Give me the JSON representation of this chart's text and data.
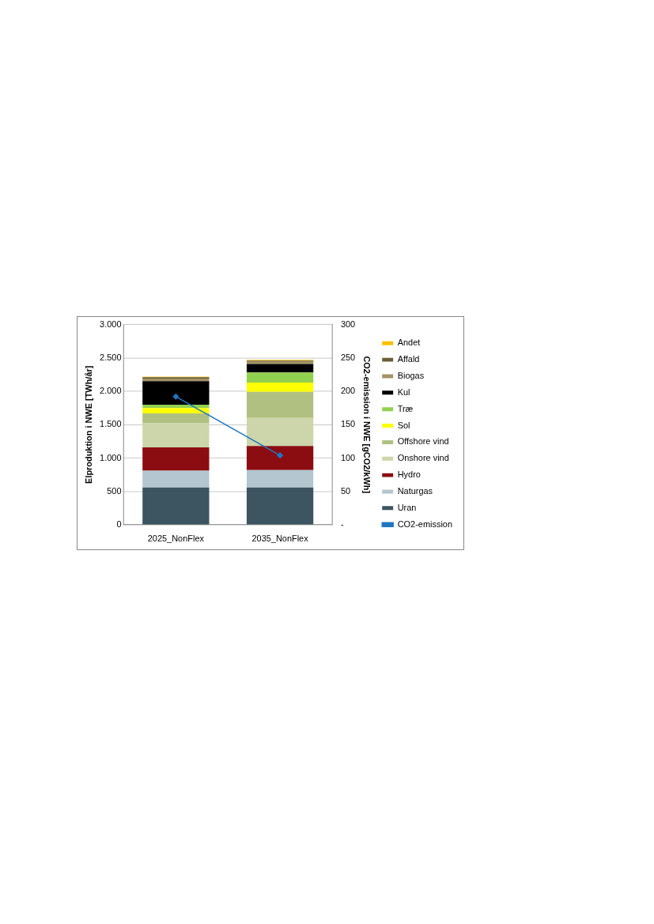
{
  "chart_data": {
    "type": "bar",
    "stacked": true,
    "ylabel": "Elproduktion i NWE [TWh/år]",
    "y2label": "CO2-emission i NWE [gCO2/kWh]",
    "categories": [
      "2025_NonFlex",
      "2035_NonFlex"
    ],
    "series": [
      {
        "name": "Uran",
        "color": "#3d5461",
        "values": [
          560,
          560
        ]
      },
      {
        "name": "Naturgas",
        "color": "#b4c6d0",
        "values": [
          250,
          260
        ]
      },
      {
        "name": "Hydro",
        "color": "#8b0d12",
        "values": [
          350,
          360
        ]
      },
      {
        "name": "Onshore vind",
        "color": "#ccd6aa",
        "values": [
          360,
          420
        ]
      },
      {
        "name": "Offshore vind",
        "color": "#b0c080",
        "values": [
          150,
          390
        ]
      },
      {
        "name": "Sol",
        "color": "#ffff00",
        "values": [
          80,
          140
        ]
      },
      {
        "name": "Træ",
        "color": "#92d050",
        "values": [
          50,
          150
        ]
      },
      {
        "name": "Kul",
        "color": "#000000",
        "values": [
          350,
          130
        ]
      },
      {
        "name": "Biogas",
        "color": "#a39364",
        "values": [
          40,
          30
        ]
      },
      {
        "name": "Affald",
        "color": "#6b5e3a",
        "values": [
          20,
          20
        ]
      },
      {
        "name": "Andet",
        "color": "#ffc000",
        "values": [
          10,
          10
        ]
      },
      {
        "name": "CO2-emission",
        "type": "line",
        "axis": "y2",
        "color": "#1f77c4",
        "marker": "diamond",
        "values": [
          192,
          104
        ]
      }
    ],
    "ylim": [
      0,
      3000
    ],
    "yticks": [
      {
        "value": 0,
        "label": "0"
      },
      {
        "value": 500,
        "label": "500"
      },
      {
        "value": 1000,
        "label": "1.000"
      },
      {
        "value": 1500,
        "label": "1.500"
      },
      {
        "value": 2000,
        "label": "2.000"
      },
      {
        "value": 2500,
        "label": "2.500"
      },
      {
        "value": 3000,
        "label": "3.000"
      }
    ],
    "y2lim": [
      0,
      300
    ],
    "y2ticks": [
      {
        "value": 0,
        "label": "-"
      },
      50,
      100,
      150,
      200,
      250,
      300
    ],
    "grid": "y",
    "legend": "right"
  }
}
